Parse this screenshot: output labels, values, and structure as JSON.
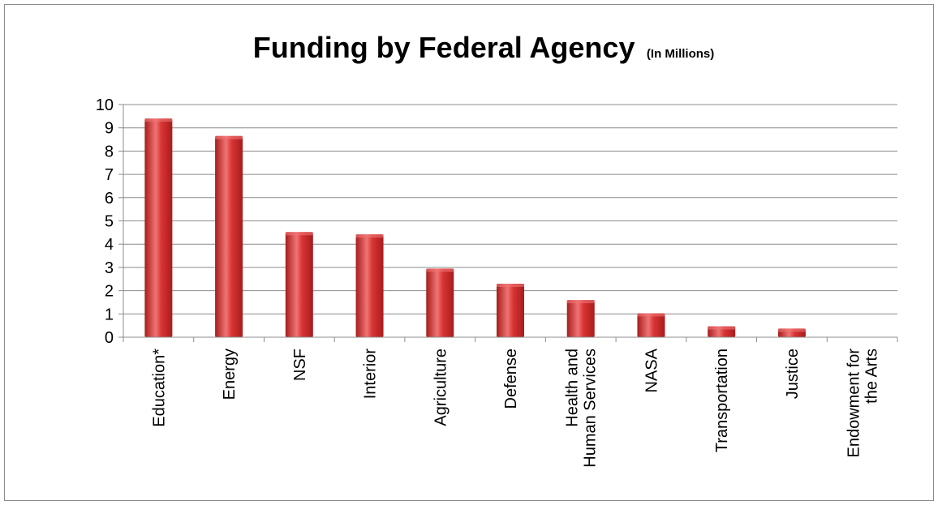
{
  "chart_data": {
    "type": "bar",
    "title": "Funding by Federal Agency",
    "subtitle": "(In Millions)",
    "xlabel": "",
    "ylabel": "",
    "categories": [
      "Education*",
      "Energy",
      "NSF",
      "Interior",
      "Agriculture",
      "Defense",
      "Health and Human Services",
      "NASA",
      "Transportation",
      "Justice",
      "Endowment for the Arts"
    ],
    "category_lines": [
      [
        "Education*"
      ],
      [
        "Energy"
      ],
      [
        "NSF"
      ],
      [
        "Interior"
      ],
      [
        "Agriculture"
      ],
      [
        "Defense"
      ],
      [
        "Health and",
        "Human Services"
      ],
      [
        "NASA"
      ],
      [
        "Transportation"
      ],
      [
        "Justice"
      ],
      [
        "Endowment for",
        "the Arts"
      ]
    ],
    "values": [
      9.4,
      8.65,
      4.52,
      4.42,
      2.95,
      2.3,
      1.6,
      1.03,
      0.47,
      0.37,
      0.0
    ],
    "ylim": [
      0,
      10
    ],
    "yticks": [
      0,
      1,
      2,
      3,
      4,
      5,
      6,
      7,
      8,
      9,
      10
    ],
    "grid": true,
    "legend": "none",
    "colors": {
      "bar_dark": "#a81c1c",
      "bar_mid": "#d83434",
      "bar_light": "#f07474",
      "grid": "#8c8c8c",
      "axis": "#8c8c8c"
    }
  }
}
